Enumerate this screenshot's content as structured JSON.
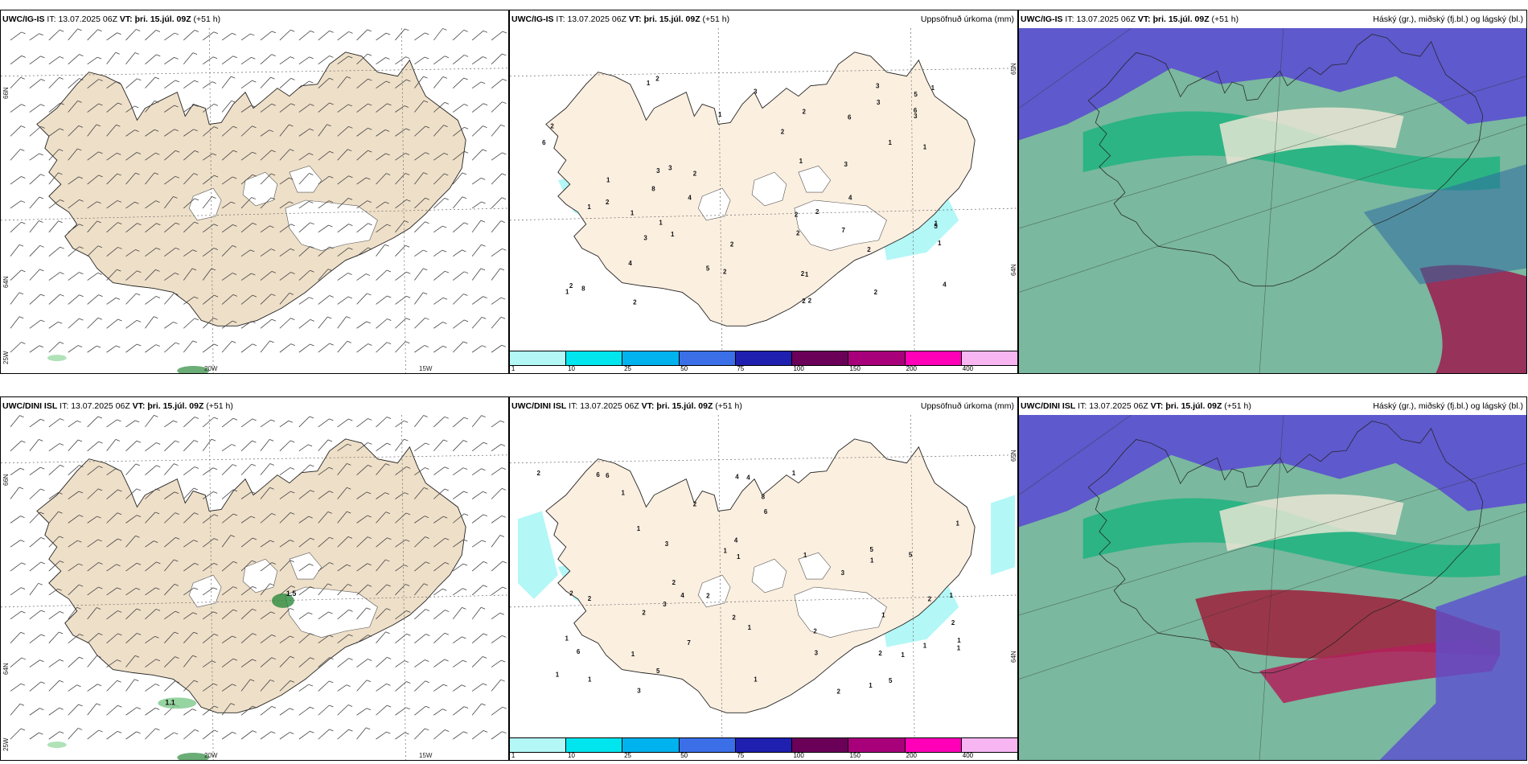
{
  "header_common": {
    "it_label": "IT:",
    "it_value": "13.07.2025 06Z",
    "vt_label": "VT:",
    "vt_value": "þri. 15.júl. 09Z",
    "lead": "(+51 h)"
  },
  "panels": [
    {
      "model": "UWC/IG-IS",
      "right_title": "",
      "kind": "wind"
    },
    {
      "model": "UWC/IG-IS",
      "right_title": "Uppsöfnuð úrkoma (mm)",
      "kind": "precip"
    },
    {
      "model": "UWC/IG-IS",
      "right_title": "Háský (gr.), miðský (fj.bl.) og lágský (bl.)",
      "kind": "cloud"
    },
    {
      "model": "UWC/DINI ISL",
      "right_title": "",
      "kind": "wind"
    },
    {
      "model": "UWC/DINI ISL",
      "right_title": "Uppsöfnuð úrkoma (mm)",
      "kind": "precip"
    },
    {
      "model": "UWC/DINI ISL",
      "right_title": "Háský (gr.), miðský (fj.bl.) og lágský (bl.)",
      "kind": "cloud"
    }
  ],
  "grid_labels": {
    "lat_66": "66N",
    "lat_64": "64N",
    "lat_65": "65N",
    "lon_25": "25W",
    "lon_20": "20W",
    "lon_15": "15W"
  },
  "colorbar": {
    "colors": [
      "#b3f7f7",
      "#00e5ee",
      "#00b2ee",
      "#3a6fe8",
      "#1f1fb0",
      "#6a0058",
      "#a8007a",
      "#ff00b8",
      "#f7b6f2"
    ],
    "ticks": [
      "1",
      "10",
      "25",
      "50",
      "75",
      "100",
      "150",
      "200",
      "400"
    ]
  },
  "precip_labels_top": [
    "1",
    "1",
    "2",
    "1",
    "1",
    "1",
    "1",
    "1",
    "2",
    "1",
    "1",
    "3",
    "2",
    "2",
    "2",
    "1",
    "3",
    "2",
    "1",
    "2",
    "6",
    "6",
    "2",
    "1",
    "2",
    "1",
    "3",
    "4",
    "5",
    "3",
    "4",
    "3",
    "5",
    "4",
    "2",
    "3",
    "5",
    "8",
    "3",
    "2",
    "4",
    "3",
    "2",
    "7",
    "8",
    "6",
    "2",
    "2",
    "2",
    "2",
    "2",
    "2",
    "1",
    "1"
  ],
  "precip_labels_bottom": [
    "1",
    "2",
    "1",
    "2",
    "2",
    "2",
    "2",
    "1",
    "2",
    "1",
    "1",
    "1",
    "2",
    "1",
    "6",
    "1",
    "4",
    "5",
    "1",
    "3",
    "4",
    "5",
    "2",
    "3",
    "6",
    "1",
    "5",
    "3",
    "1",
    "7",
    "8",
    "4",
    "1",
    "1",
    "2",
    "1",
    "1",
    "4",
    "5",
    "6",
    "6",
    "2",
    "2",
    "3",
    "3",
    "1",
    "2",
    "1",
    "1",
    "1",
    "1",
    "1",
    "2"
  ],
  "wind_value_labels": [
    "1.1",
    "1.5"
  ],
  "colors": {
    "land": "#eedfc8",
    "land_precip": "#fbefe0",
    "ice": "#ffffff",
    "low_cloud": "#5b4fd0",
    "mid_cloud": "#1fb37f",
    "high_cloud": "#7ab89f",
    "deep_red": "#a01e3a"
  }
}
